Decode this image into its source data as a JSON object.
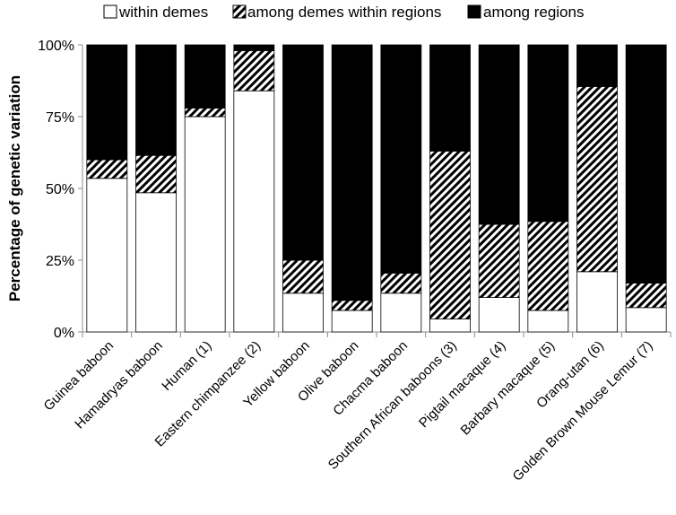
{
  "chart_data": {
    "type": "bar",
    "stacked": true,
    "normalized": true,
    "title": "",
    "xlabel": "",
    "ylabel": "Percentage of genetic variation",
    "ylim": [
      0,
      100
    ],
    "yticks": [
      "0%",
      "25%",
      "50%",
      "75%",
      "100%"
    ],
    "grid": false,
    "legend_position": "top",
    "categories": [
      "Guinea baboon",
      "Hamadryas baboon",
      "Human (1)",
      "Eastern chimpanzee (2)",
      "Yellow baboon",
      "Olive baboon",
      "Chacma baboon",
      "Southern African baboons (3)",
      "Pigtail macaque (4)",
      "Barbary macaque (5)",
      "Orang-utan (6)",
      "Golden Brown Mouse Lemur (7)"
    ],
    "series": [
      {
        "name": "within demes",
        "pattern": "white",
        "color": "#ffffff",
        "values": [
          53.5,
          48.5,
          75,
          84,
          13.5,
          7.5,
          13.5,
          4.5,
          12,
          7.5,
          21,
          8.5
        ]
      },
      {
        "name": "among demes within regions",
        "pattern": "hatch",
        "color": "#000000",
        "values": [
          6.5,
          13,
          3,
          14,
          11.5,
          3.5,
          7,
          58.5,
          25.5,
          31,
          64.5,
          8.5
        ]
      },
      {
        "name": "among regions",
        "pattern": "solid",
        "color": "#000000",
        "values": [
          40,
          38.5,
          22,
          2,
          75,
          89,
          79.5,
          37,
          62.5,
          61.5,
          14.5,
          83
        ]
      }
    ]
  }
}
